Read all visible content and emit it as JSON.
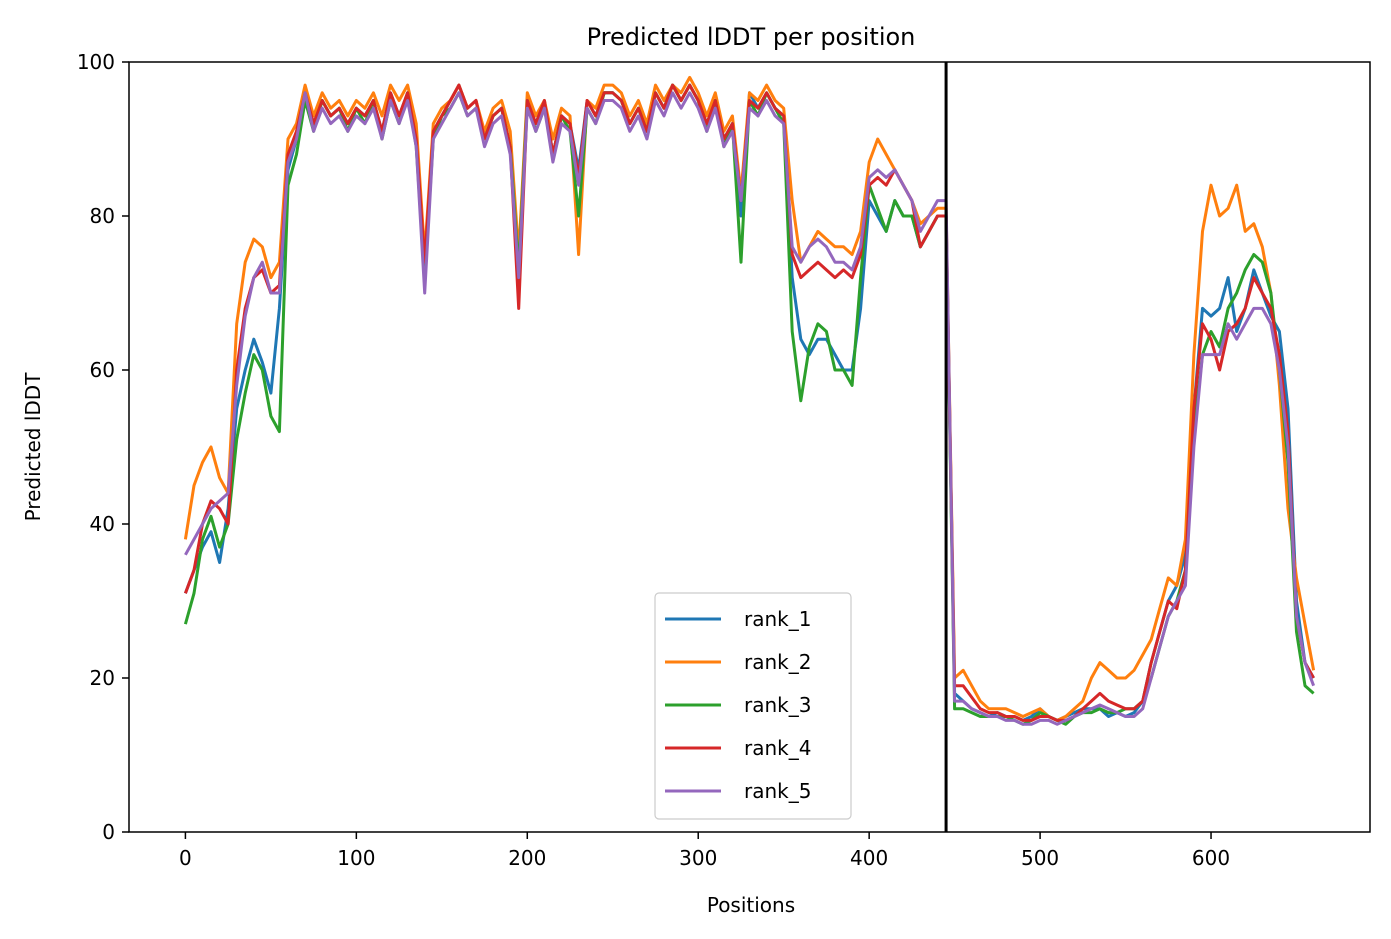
{
  "chart_data": {
    "type": "line",
    "title": "Predicted lDDT per position",
    "xlabel": "Positions",
    "ylabel": "Predicted lDDT",
    "xlim": [
      -33,
      693
    ],
    "ylim": [
      0,
      100
    ],
    "xticks": [
      0,
      100,
      200,
      300,
      400,
      500,
      600
    ],
    "yticks": [
      0,
      20,
      40,
      60,
      80,
      100
    ],
    "grid": false,
    "legend_position": "lower-center",
    "chain_boundary_x": 445,
    "x": [
      0,
      5,
      10,
      15,
      20,
      25,
      30,
      35,
      40,
      45,
      50,
      55,
      60,
      65,
      70,
      75,
      80,
      85,
      90,
      95,
      100,
      105,
      110,
      115,
      120,
      125,
      130,
      135,
      140,
      145,
      150,
      155,
      160,
      165,
      170,
      175,
      180,
      185,
      190,
      195,
      200,
      205,
      210,
      215,
      220,
      225,
      230,
      235,
      240,
      245,
      250,
      255,
      260,
      265,
      270,
      275,
      280,
      285,
      290,
      295,
      300,
      305,
      310,
      315,
      320,
      325,
      330,
      335,
      340,
      345,
      350,
      355,
      360,
      365,
      370,
      375,
      380,
      385,
      390,
      395,
      400,
      405,
      410,
      415,
      420,
      425,
      430,
      435,
      440,
      445,
      450,
      455,
      460,
      465,
      470,
      475,
      480,
      485,
      490,
      495,
      500,
      505,
      510,
      515,
      520,
      525,
      530,
      535,
      540,
      545,
      550,
      555,
      560,
      565,
      570,
      575,
      580,
      585,
      590,
      595,
      600,
      605,
      610,
      615,
      620,
      625,
      630,
      635,
      640,
      645,
      650,
      655,
      660
    ],
    "series": [
      {
        "name": "rank_1",
        "color": "#1f77b4",
        "values": [
          31,
          34,
          37,
          39,
          35,
          42,
          55,
          60,
          64,
          61,
          57,
          68,
          86,
          90,
          96,
          92,
          95,
          93,
          94,
          92,
          94,
          93,
          95,
          91,
          96,
          93,
          96,
          90,
          73,
          91,
          93,
          95,
          97,
          94,
          95,
          90,
          93,
          94,
          89,
          72,
          95,
          92,
          95,
          88,
          93,
          92,
          86,
          95,
          93,
          96,
          96,
          95,
          92,
          94,
          91,
          96,
          94,
          97,
          95,
          97,
          95,
          92,
          95,
          90,
          92,
          80,
          96,
          94,
          96,
          94,
          93,
          72,
          64,
          62,
          64,
          64,
          62,
          60,
          60,
          68,
          82,
          80,
          78,
          82,
          80,
          80,
          76,
          78,
          80,
          80,
          18,
          17,
          16,
          15.5,
          15,
          15.5,
          15,
          15,
          14.5,
          15,
          16,
          15,
          14.5,
          15,
          15.5,
          16,
          16,
          16,
          15,
          15.5,
          15,
          15.5,
          17,
          22,
          26,
          30,
          32,
          36,
          55,
          68,
          67,
          68,
          72,
          65,
          68,
          73,
          70,
          67,
          65,
          55,
          30,
          22,
          20
        ]
      },
      {
        "name": "rank_2",
        "color": "#ff7f0e",
        "values": [
          38,
          45,
          48,
          50,
          46,
          44,
          66,
          74,
          77,
          76,
          72,
          74,
          90,
          92,
          97,
          93,
          96,
          94,
          95,
          93,
          95,
          94,
          96,
          93,
          97,
          95,
          97,
          92,
          75,
          92,
          94,
          95,
          97,
          94,
          95,
          91,
          94,
          95,
          91,
          75,
          96,
          93,
          95,
          90,
          94,
          93,
          75,
          95,
          94,
          97,
          97,
          96,
          93,
          95,
          92,
          97,
          95,
          97,
          96,
          98,
          96,
          93,
          96,
          91,
          93,
          83,
          96,
          95,
          97,
          95,
          94,
          82,
          74,
          76,
          78,
          77,
          76,
          76,
          75,
          78,
          87,
          90,
          88,
          86,
          84,
          82,
          79,
          80,
          81,
          81,
          20,
          21,
          19,
          17,
          16,
          16,
          16,
          15.5,
          15,
          15.5,
          16,
          15,
          14.5,
          15,
          16,
          17,
          20,
          22,
          21,
          20,
          20,
          21,
          23,
          25,
          29,
          33,
          32,
          38,
          62,
          78,
          84,
          80,
          81,
          84,
          78,
          79,
          76,
          70,
          58,
          42,
          33,
          27,
          21
        ]
      },
      {
        "name": "rank_3",
        "color": "#2ca02c",
        "values": [
          27,
          31,
          38,
          41,
          37,
          40,
          51,
          57,
          62,
          60,
          54,
          52,
          84,
          88,
          95,
          91,
          95,
          93,
          94,
          91,
          94,
          92,
          95,
          90,
          95,
          92,
          96,
          89,
          72,
          90,
          93,
          94,
          96,
          93,
          94,
          90,
          93,
          94,
          89,
          73,
          95,
          91,
          94,
          88,
          93,
          91,
          80,
          94,
          92,
          96,
          96,
          95,
          92,
          94,
          91,
          96,
          94,
          97,
          95,
          97,
          95,
          91,
          95,
          89,
          92,
          74,
          95,
          93,
          96,
          94,
          92,
          65,
          56,
          63,
          66,
          65,
          60,
          60,
          58,
          72,
          84,
          81,
          78,
          82,
          80,
          80,
          76,
          78,
          80,
          80,
          16,
          16,
          15.5,
          15,
          15,
          15,
          15,
          14.5,
          14,
          14.5,
          15.5,
          15,
          14.5,
          14,
          15,
          15.5,
          15.5,
          16,
          15.5,
          15.5,
          16,
          16,
          17,
          20,
          24,
          28,
          30,
          34,
          52,
          62,
          65,
          63,
          68,
          70,
          73,
          75,
          74,
          70,
          60,
          48,
          26,
          19,
          18
        ]
      },
      {
        "name": "rank_4",
        "color": "#d62728",
        "values": [
          31,
          34,
          40,
          43,
          42,
          40,
          60,
          68,
          72,
          73,
          70,
          71,
          88,
          91,
          96,
          92,
          95,
          93,
          94,
          92,
          94,
          93,
          95,
          91,
          96,
          93,
          96,
          90,
          74,
          91,
          93,
          95,
          97,
          94,
          95,
          90,
          93,
          94,
          89,
          68,
          95,
          92,
          95,
          88,
          93,
          92,
          85,
          95,
          93,
          96,
          96,
          95,
          92,
          94,
          91,
          96,
          94,
          97,
          95,
          97,
          95,
          92,
          95,
          90,
          92,
          82,
          95,
          94,
          96,
          94,
          93,
          75,
          72,
          73,
          74,
          73,
          72,
          73,
          72,
          75,
          84,
          85,
          84,
          86,
          84,
          82,
          76,
          78,
          80,
          80,
          19,
          19,
          17.5,
          16,
          15.5,
          15.5,
          15,
          15,
          14.5,
          14.5,
          15,
          15,
          14.5,
          14.5,
          15,
          16,
          17,
          18,
          17,
          16.5,
          16,
          16,
          17,
          22,
          26,
          30,
          29,
          34,
          55,
          66,
          64,
          60,
          65,
          66,
          68,
          72,
          70,
          68,
          62,
          52,
          28,
          22,
          20
        ]
      },
      {
        "name": "rank_5",
        "color": "#9467bd",
        "values": [
          36,
          38,
          40,
          42,
          43,
          44,
          58,
          67,
          72,
          74,
          70,
          70,
          87,
          90,
          96,
          91,
          94,
          92,
          93,
          91,
          93,
          92,
          94,
          90,
          95,
          92,
          95,
          89,
          70,
          90,
          92,
          94,
          96,
          93,
          94,
          89,
          92,
          93,
          88,
          72,
          94,
          91,
          94,
          87,
          92,
          91,
          84,
          94,
          92,
          95,
          95,
          94,
          91,
          93,
          90,
          95,
          93,
          96,
          94,
          96,
          94,
          91,
          94,
          89,
          91,
          82,
          94,
          93,
          95,
          93,
          92,
          76,
          74,
          76,
          77,
          76,
          74,
          74,
          73,
          76,
          85,
          86,
          85,
          86,
          84,
          82,
          78,
          80,
          82,
          82,
          17,
          17,
          16,
          15.5,
          15,
          15,
          14.5,
          14.5,
          14,
          14,
          14.5,
          14.5,
          14,
          14.5,
          15,
          15.5,
          16,
          16.5,
          16,
          15.5,
          15,
          15,
          16,
          20,
          24,
          28,
          30,
          32,
          50,
          62,
          62,
          62,
          66,
          64,
          66,
          68,
          68,
          66,
          60,
          50,
          28,
          22,
          19
        ]
      }
    ]
  }
}
